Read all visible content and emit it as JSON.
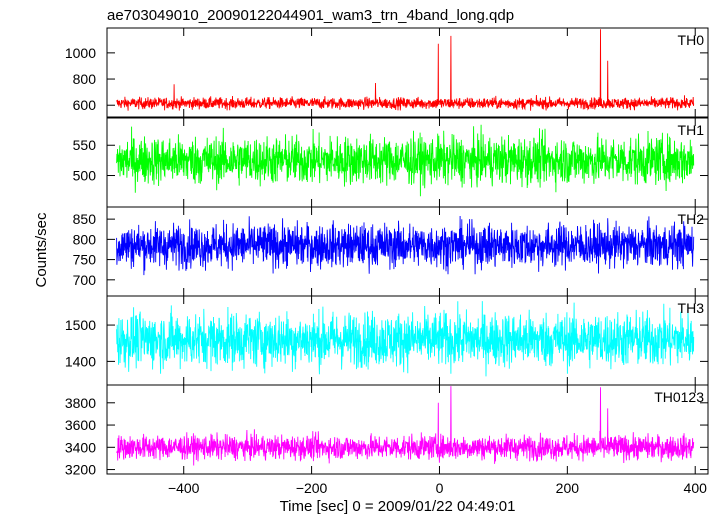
{
  "chart_data": {
    "type": "line",
    "title": "ae703049010_20090122044901_wam3_trn_4band_long.qdp",
    "xlabel": "Time [sec] 0 = 2009/01/22 04:49:01",
    "ylabel": "Counts/sec",
    "xlim": [
      -520,
      420
    ],
    "xticks": [
      -400,
      -200,
      0,
      200,
      400
    ],
    "panels": [
      {
        "name": "TH0",
        "color": "#ff0000",
        "ylim": [
          510,
          1190
        ],
        "yticks": [
          600,
          800,
          1000
        ],
        "baseline": 615,
        "noise": 22,
        "spikes": [
          {
            "x": -415,
            "y": 760
          },
          {
            "x": -100,
            "y": 770
          },
          {
            "x": -2,
            "y": 1070
          },
          {
            "x": 18,
            "y": 1130
          },
          {
            "x": 252,
            "y": 1180
          },
          {
            "x": 263,
            "y": 940
          }
        ]
      },
      {
        "name": "TH1",
        "color": "#00ff00",
        "ylim": [
          448,
          595
        ],
        "yticks": [
          500,
          550
        ],
        "baseline": 525,
        "noise": 20,
        "spikes": []
      },
      {
        "name": "TH2",
        "color": "#0000ff",
        "ylim": [
          660,
          880
        ],
        "yticks": [
          700,
          750,
          800,
          850
        ],
        "baseline": 785,
        "noise": 27,
        "spikes": []
      },
      {
        "name": "TH3",
        "color": "#00ffff",
        "ylim": [
          1335,
          1580
        ],
        "yticks": [
          1400,
          1500
        ],
        "baseline": 1460,
        "noise": 38,
        "spikes": []
      },
      {
        "name": "TH0123",
        "color": "#ff00ff",
        "ylim": [
          3160,
          3960
        ],
        "yticks": [
          3200,
          3400,
          3600,
          3800
        ],
        "baseline": 3400,
        "noise": 55,
        "spikes": [
          {
            "x": -2,
            "y": 3800
          },
          {
            "x": 18,
            "y": 3950
          },
          {
            "x": 252,
            "y": 3940
          },
          {
            "x": 263,
            "y": 3750
          }
        ]
      }
    ]
  }
}
